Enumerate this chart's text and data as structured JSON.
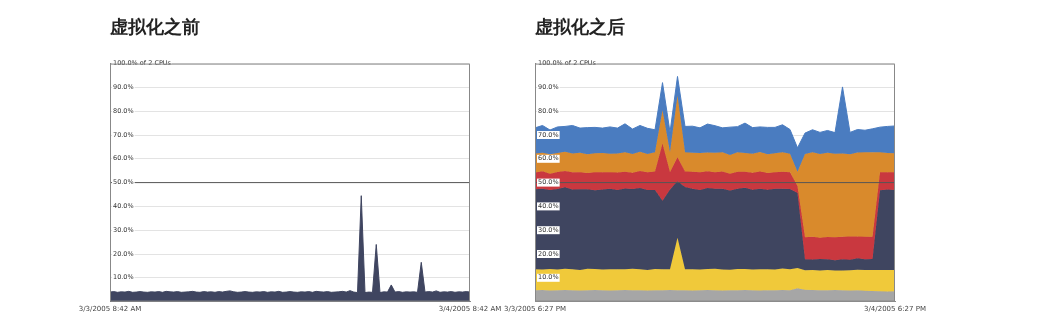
{
  "chart_data": [
    {
      "type": "area",
      "title": "虚拟化之前",
      "categories": [
        "3/3/2005 8:42 AM",
        null,
        null,
        null,
        null,
        null,
        null,
        null,
        null,
        null,
        null,
        null,
        null,
        null,
        null,
        null,
        null,
        null,
        null,
        null,
        null,
        null,
        null,
        null,
        null,
        null,
        null,
        null,
        null,
        null,
        null,
        null,
        null,
        null,
        null,
        null,
        null,
        null,
        null,
        null,
        null,
        null,
        null,
        null,
        null,
        null,
        null,
        null,
        null,
        null,
        null,
        null,
        null,
        null,
        null,
        null,
        null,
        null,
        null,
        null,
        null,
        null,
        null,
        null,
        null,
        null,
        null,
        null,
        null,
        null,
        null,
        null,
        null,
        null,
        null,
        null,
        null,
        null,
        null,
        null,
        null,
        null,
        null,
        null,
        null,
        null,
        null,
        null,
        null,
        null,
        null,
        null,
        null,
        null,
        null,
        null,
        "3/4/2005 8:42 AM"
      ],
      "series": [
        {
          "color": "#3f4560",
          "values": [
            4,
            4.2,
            3.9,
            4.1,
            4,
            4.3,
            3.9,
            4,
            4.2,
            4,
            3.9,
            4.1,
            4,
            4.2,
            3.9,
            4.3,
            4.1,
            4,
            4.2,
            3.9,
            4,
            4.1,
            4.3,
            4,
            3.9,
            4.2,
            4,
            4.1,
            3.9,
            4.2,
            4,
            4.3,
            4.5,
            4.1,
            3.9,
            4,
            4.2,
            4,
            3.9,
            4.1,
            4,
            4.2,
            3.9,
            4.1,
            4,
            4.3,
            3.9,
            4,
            4.2,
            4,
            3.9,
            4.1,
            4,
            4.2,
            3.9,
            4.3,
            4.1,
            4,
            4.2,
            3.9,
            4,
            4.1,
            4.3,
            4,
            4.6,
            4,
            3.8,
            44.5,
            3.8,
            4,
            3.9,
            24,
            3.8,
            4.1,
            4,
            7,
            4,
            4.2,
            3.9,
            4.1,
            4,
            4.1,
            3.9,
            16.5,
            4,
            4.2,
            4,
            4.5,
            3.9,
            4.1,
            4,
            4.2,
            3.9,
            4.1,
            4,
            4.2,
            4
          ]
        }
      ],
      "ylim": [
        0,
        100
      ],
      "yticks": [
        {
          "value": 10,
          "label": "10.0%"
        },
        {
          "value": 20,
          "label": "20.0%"
        },
        {
          "value": 30,
          "label": "30.0%"
        },
        {
          "value": 40,
          "label": "40.0%"
        },
        {
          "value": 50,
          "label": "50.0%"
        },
        {
          "value": 60,
          "label": "60.0%"
        },
        {
          "value": 70,
          "label": "70.0%"
        },
        {
          "value": 80,
          "label": "80.0%"
        },
        {
          "value": 90,
          "label": "90.0%"
        },
        {
          "value": 100,
          "label": "100.0% of 2 CPUs"
        }
      ],
      "ref_lines": [
        {
          "axis": "y",
          "value": 50,
          "color": "#555555"
        }
      ],
      "grid": "y"
    },
    {
      "type": "area",
      "title": "虚拟化之后",
      "stacked": true,
      "categories": [
        "3/3/2005 6:27 PM",
        null,
        null,
        null,
        null,
        null,
        null,
        null,
        null,
        null,
        null,
        null,
        null,
        null,
        null,
        null,
        null,
        null,
        null,
        null,
        null,
        null,
        null,
        null,
        null,
        null,
        null,
        null,
        null,
        null,
        null,
        null,
        null,
        null,
        null,
        null,
        null,
        null,
        null,
        null,
        null,
        null,
        null,
        null,
        null,
        null,
        null,
        null,
        "3/4/2005 6:27 PM"
      ],
      "series": [
        {
          "color": "#a6a6a6",
          "values": [
            4.8,
            4.9,
            4.7,
            4.8,
            4.9,
            4.8,
            4.7,
            4.8,
            4.9,
            4.8,
            4.7,
            4.8,
            4.9,
            4.8,
            4.8,
            4.7,
            4.8,
            4.8,
            4.9,
            4.8,
            4.8,
            4.7,
            4.8,
            4.9,
            4.8,
            4.7,
            4.8,
            4.8,
            4.9,
            4.8,
            4.7,
            4.8,
            4.8,
            4.9,
            4.8,
            5.6,
            5,
            4.9,
            4.8,
            4.8,
            4.9,
            4.8,
            4.7,
            4.8,
            4.6,
            4.5,
            4.3,
            4.2,
            4.4
          ]
        },
        {
          "color": "#f0c93a",
          "values": [
            8.8,
            8.6,
            9,
            8.7,
            8.9,
            8.8,
            8.6,
            9,
            8.8,
            8.7,
            8.9,
            8.8,
            8.7,
            9,
            8.8,
            8.6,
            8.9,
            8.8,
            8.7,
            22,
            8.8,
            8.9,
            8.7,
            8.8,
            9,
            8.8,
            8.6,
            8.9,
            8.8,
            8.7,
            8.9,
            8.8,
            8.7,
            9,
            8.8,
            8.5,
            8.2,
            8.4,
            8.3,
            8.5,
            8.2,
            8.3,
            8.5,
            8.6,
            8.7,
            8.8,
            9,
            9.1,
            8.9
          ]
        },
        {
          "color": "#3f4560",
          "values": [
            33.6,
            33.9,
            33.2,
            33.8,
            34.2,
            33.5,
            33.9,
            33.4,
            33.1,
            33.6,
            33.8,
            33.3,
            33.9,
            33.5,
            34.1,
            33.6,
            33.2,
            28.8,
            33.5,
            23.8,
            34.6,
            33.8,
            33.4,
            34,
            33.6,
            33.9,
            33.3,
            33.7,
            34.1,
            33.5,
            33.8,
            33.4,
            33.9,
            33.5,
            33.7,
            31.5,
            4.6,
            4.4,
            4.8,
            4.5,
            4.3,
            4.7,
            4.4,
            4.8,
            4.5,
            4.6,
            33.5,
            33.8,
            33.6
          ]
        },
        {
          "color": "#c9383f",
          "values": [
            7,
            7.4,
            6.8,
            7.2,
            6.9,
            7.3,
            7.1,
            6.8,
            7.5,
            7.2,
            6.9,
            7.3,
            7.1,
            6.8,
            7.2,
            7.4,
            7.8,
            24,
            7.4,
            10,
            6.5,
            7.2,
            7.4,
            7.1,
            6.9,
            7.3,
            7,
            7.2,
            6.8,
            7.1,
            7.3,
            7,
            6.9,
            7.2,
            7,
            3,
            9.2,
            9.5,
            8.9,
            9.3,
            9.6,
            9.4,
            9.8,
            9.2,
            9.5,
            9.3,
            7.5,
            7.2,
            7.4
          ]
        },
        {
          "color": "#d98a2c",
          "values": [
            8,
            7.7,
            8.2,
            7.9,
            8.1,
            7.8,
            8.2,
            7.9,
            8,
            8.1,
            7.8,
            8,
            8.2,
            7.9,
            8.1,
            7.7,
            8,
            14,
            8.2,
            26,
            8,
            7.9,
            8.1,
            7.8,
            8.2,
            8,
            7.9,
            8.1,
            7.8,
            8,
            8.2,
            7.9,
            8,
            8.1,
            7.8,
            6,
            35,
            35.5,
            35.2,
            35.4,
            35.1,
            35,
            34.5,
            35.2,
            35.4,
            35.6,
            8.4,
            8.1,
            8
          ]
        },
        {
          "color": "#4a7cc0",
          "values": [
            10.8,
            11.5,
            10.2,
            11,
            10.6,
            11.8,
            10.4,
            11.2,
            10.9,
            10.5,
            11.3,
            10.7,
            11.9,
            10.5,
            11,
            10.8,
            9.5,
            11.6,
            8.5,
            8,
            10.9,
            11.2,
            10.6,
            12,
            11.4,
            10.3,
            11.7,
            10.8,
            12.6,
            11,
            10.5,
            11.3,
            10.9,
            11.6,
            10.2,
            10,
            8.8,
            9.5,
            9.1,
            9.4,
            8.9,
            28,
            9.2,
            9.7,
            9.3,
            9.8,
            10.6,
            11.2,
            11.5
          ]
        }
      ],
      "ylim": [
        0,
        100
      ],
      "yticks": [
        {
          "value": 10,
          "label": "10.0%"
        },
        {
          "value": 20,
          "label": "20.0%"
        },
        {
          "value": 30,
          "label": "30.0%"
        },
        {
          "value": 40,
          "label": "40.0%"
        },
        {
          "value": 50,
          "label": "50.0%"
        },
        {
          "value": 60,
          "label": "60.0%"
        },
        {
          "value": 70,
          "label": "70.0%"
        },
        {
          "value": 80,
          "label": "80.0%"
        },
        {
          "value": 90,
          "label": "90.0%"
        },
        {
          "value": 100,
          "label": "100.0% of 2 CPUs"
        }
      ],
      "ref_lines": [
        {
          "axis": "y",
          "value": 50,
          "color": "#555555"
        }
      ],
      "grid": "y"
    }
  ]
}
